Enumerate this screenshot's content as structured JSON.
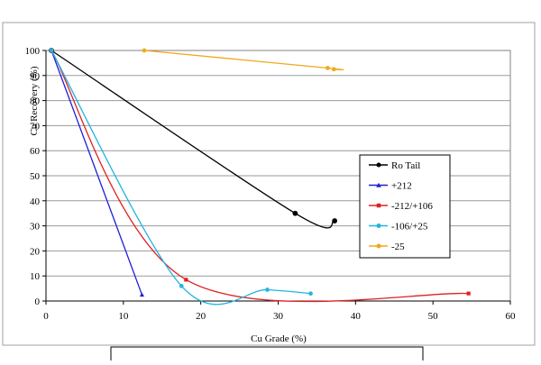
{
  "chart_data": {
    "type": "line",
    "xlabel": "Cu Grade (%)",
    "ylabel": "Cu Recovery (%)",
    "xlim": [
      0,
      60
    ],
    "ylim": [
      0,
      100
    ],
    "x_ticks": [
      0,
      10,
      20,
      30,
      40,
      50,
      60
    ],
    "y_ticks": [
      0,
      10,
      20,
      30,
      40,
      50,
      60,
      70,
      80,
      90,
      100
    ],
    "grid": "horizontal",
    "legend_position": "right",
    "series": [
      {
        "name": "Ro Tail",
        "color": "#000000",
        "marker": "circle",
        "points": [
          [
            0.7,
            100
          ],
          [
            32.2,
            35
          ],
          [
            37.3,
            32
          ]
        ]
      },
      {
        "name": "+212",
        "color": "#1f1fd6",
        "marker": "triangle",
        "points": [
          [
            0.7,
            100
          ],
          [
            12.4,
            2.5
          ]
        ]
      },
      {
        "name": "-212/+106",
        "color": "#e02020",
        "marker": "square",
        "points": [
          [
            0.7,
            100
          ],
          [
            18.1,
            8.5
          ],
          [
            54.6,
            3
          ]
        ]
      },
      {
        "name": "-106/+25",
        "color": "#22b5e0",
        "marker": "circle",
        "points": [
          [
            0.7,
            100
          ],
          [
            17.5,
            6
          ],
          [
            28.6,
            4.5
          ],
          [
            34.2,
            3
          ]
        ]
      },
      {
        "name": "-25",
        "color": "#f0a81c",
        "marker": "circle",
        "points": [
          [
            12.7,
            100
          ],
          [
            36.4,
            93
          ],
          [
            37.2,
            92.5
          ]
        ]
      }
    ]
  }
}
